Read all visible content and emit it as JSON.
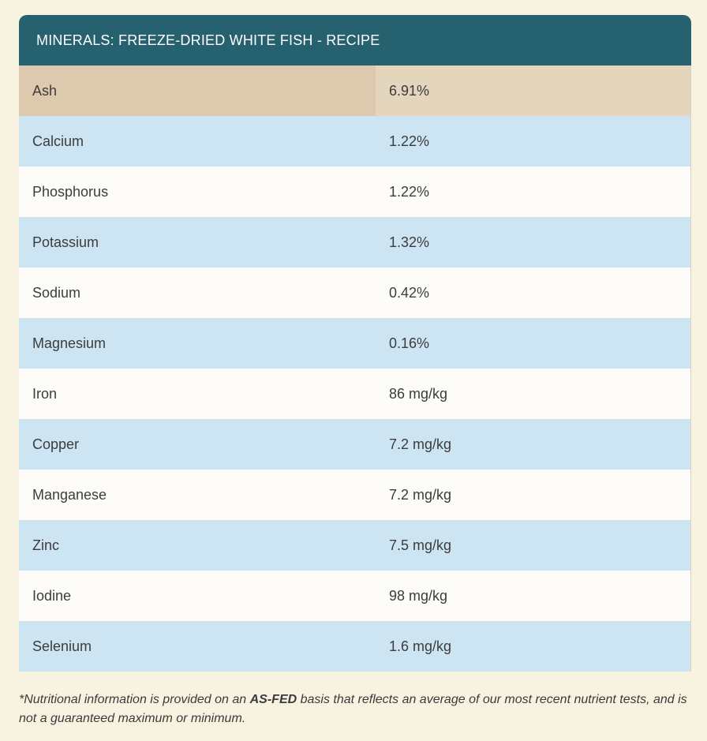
{
  "table": {
    "title": "MINERALS: FREEZE-DRIED WHITE FISH - RECIPE",
    "rows": [
      {
        "name": "Ash",
        "value": "6.91%"
      },
      {
        "name": "Calcium",
        "value": "1.22%"
      },
      {
        "name": "Phosphorus",
        "value": "1.22%"
      },
      {
        "name": "Potassium",
        "value": "1.32%"
      },
      {
        "name": "Sodium",
        "value": "0.42%"
      },
      {
        "name": "Magnesium",
        "value": "0.16%"
      },
      {
        "name": "Iron",
        "value": "86 mg/kg"
      },
      {
        "name": "Copper",
        "value": "7.2 mg/kg"
      },
      {
        "name": "Manganese",
        "value": "7.2 mg/kg"
      },
      {
        "name": "Zinc",
        "value": "7.5 mg/kg"
      },
      {
        "name": "Iodine",
        "value": "98 mg/kg"
      },
      {
        "name": "Selenium",
        "value": "1.6 mg/kg"
      }
    ]
  },
  "footnote": {
    "prefix": "*Nutritional information is provided on an ",
    "emphasis": "AS-FED",
    "suffix": " basis that reflects an average of our most recent nutrient tests, and is not a guaranteed maximum or minimum."
  },
  "colors": {
    "header": "#266170",
    "row_blue": "#cde5f3",
    "row_white": "#fdfcf8",
    "row_highlight": "#dcc9ae",
    "background": "#f8f3e1"
  }
}
